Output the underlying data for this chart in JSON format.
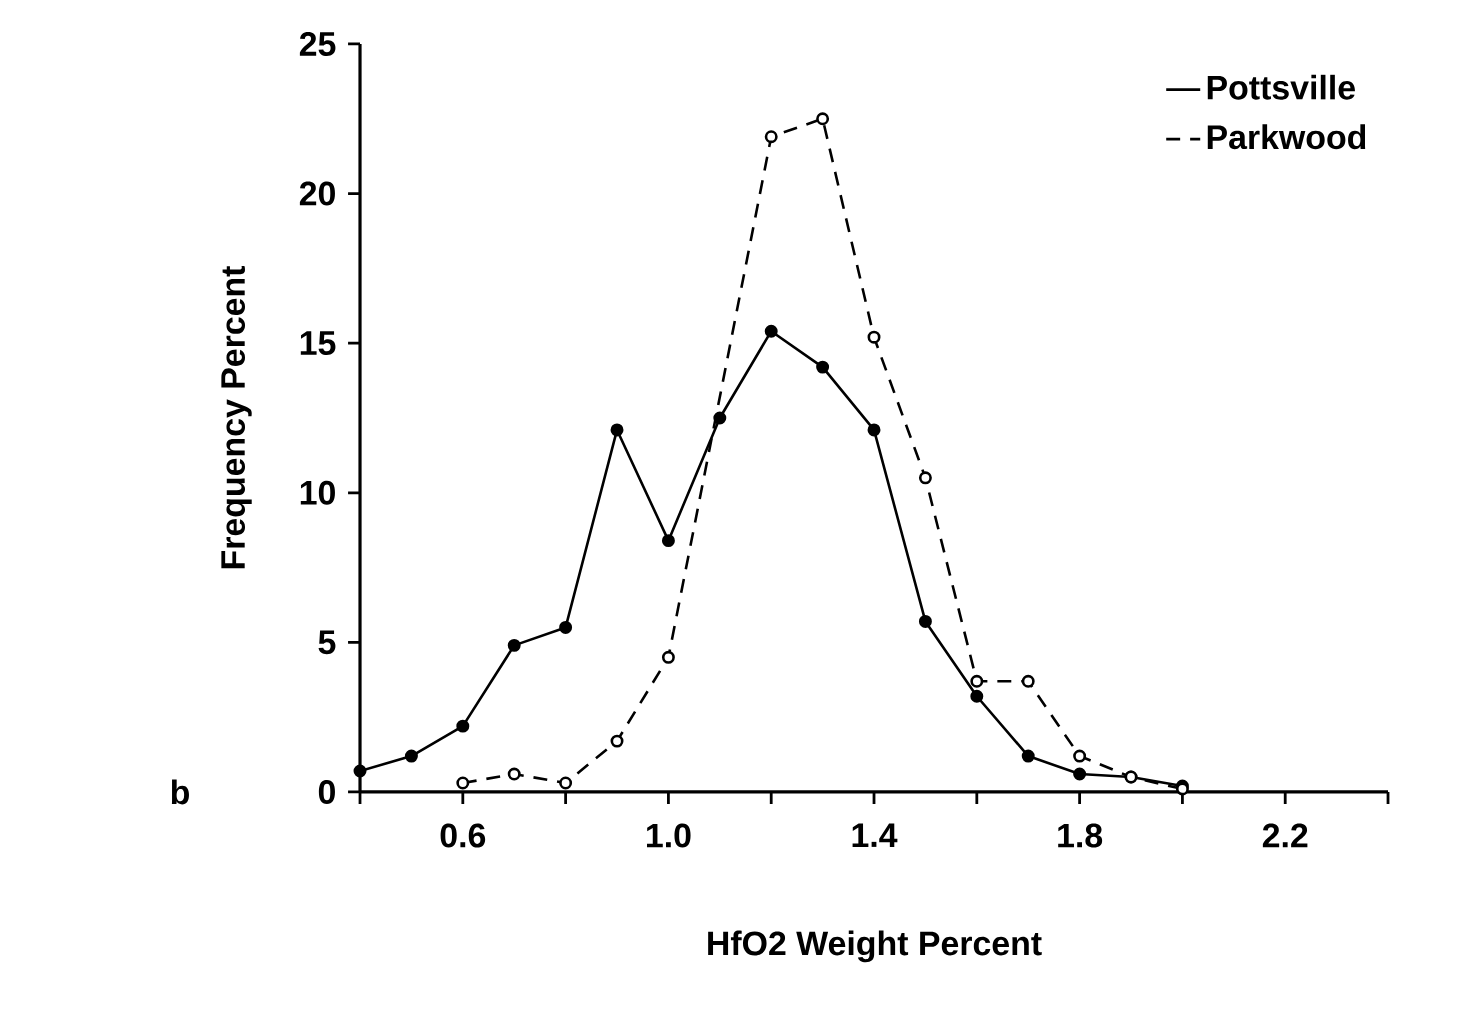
{
  "chart_data": {
    "type": "line",
    "xlabel": "HfO2 Weight Percent",
    "ylabel": "Frequency Percent",
    "series": [
      {
        "name": "Pottsville",
        "color": "#000000",
        "line_style": "solid",
        "x": [
          0.4,
          0.5,
          0.6,
          0.7,
          0.8,
          0.9,
          1.0,
          1.1,
          1.2,
          1.3,
          1.4,
          1.5,
          1.6,
          1.7,
          1.8,
          1.9,
          2.0
        ],
        "values": [
          0.7,
          1.2,
          2.2,
          4.9,
          5.5,
          12.1,
          8.4,
          12.5,
          15.4,
          14.2,
          12.1,
          5.7,
          3.2,
          1.2,
          0.6,
          0.5,
          0.2
        ]
      },
      {
        "name": "Parkwood",
        "color": "#000000",
        "line_style": "dashed",
        "x": [
          0.6,
          0.7,
          0.8,
          0.9,
          1.0,
          1.2,
          1.3,
          1.4,
          1.5,
          1.6,
          1.7,
          1.8,
          1.9,
          2.0
        ],
        "values": [
          0.3,
          0.6,
          0.3,
          1.7,
          4.5,
          21.9,
          22.5,
          15.2,
          10.5,
          3.7,
          3.7,
          1.2,
          0.5,
          0.1
        ]
      }
    ],
    "xlim": [
      0.4,
      2.4
    ],
    "xticks": [
      {
        "value": 0.4,
        "label": null
      },
      0.6,
      {
        "value": 0.8,
        "label": null
      },
      {
        "value": 1.0,
        "label": "1.0"
      },
      {
        "value": 1.2,
        "label": null
      },
      1.4,
      {
        "value": 1.6,
        "label": null
      },
      1.8,
      {
        "value": 2.0,
        "label": null
      },
      2.2,
      {
        "value": 2.4,
        "label": null
      }
    ],
    "ylim": [
      0,
      25
    ],
    "yticks": [
      0,
      5,
      10,
      15,
      20,
      25
    ],
    "marker": "circle",
    "grid": false,
    "legend": "top right",
    "annotations": [
      "b"
    ]
  }
}
